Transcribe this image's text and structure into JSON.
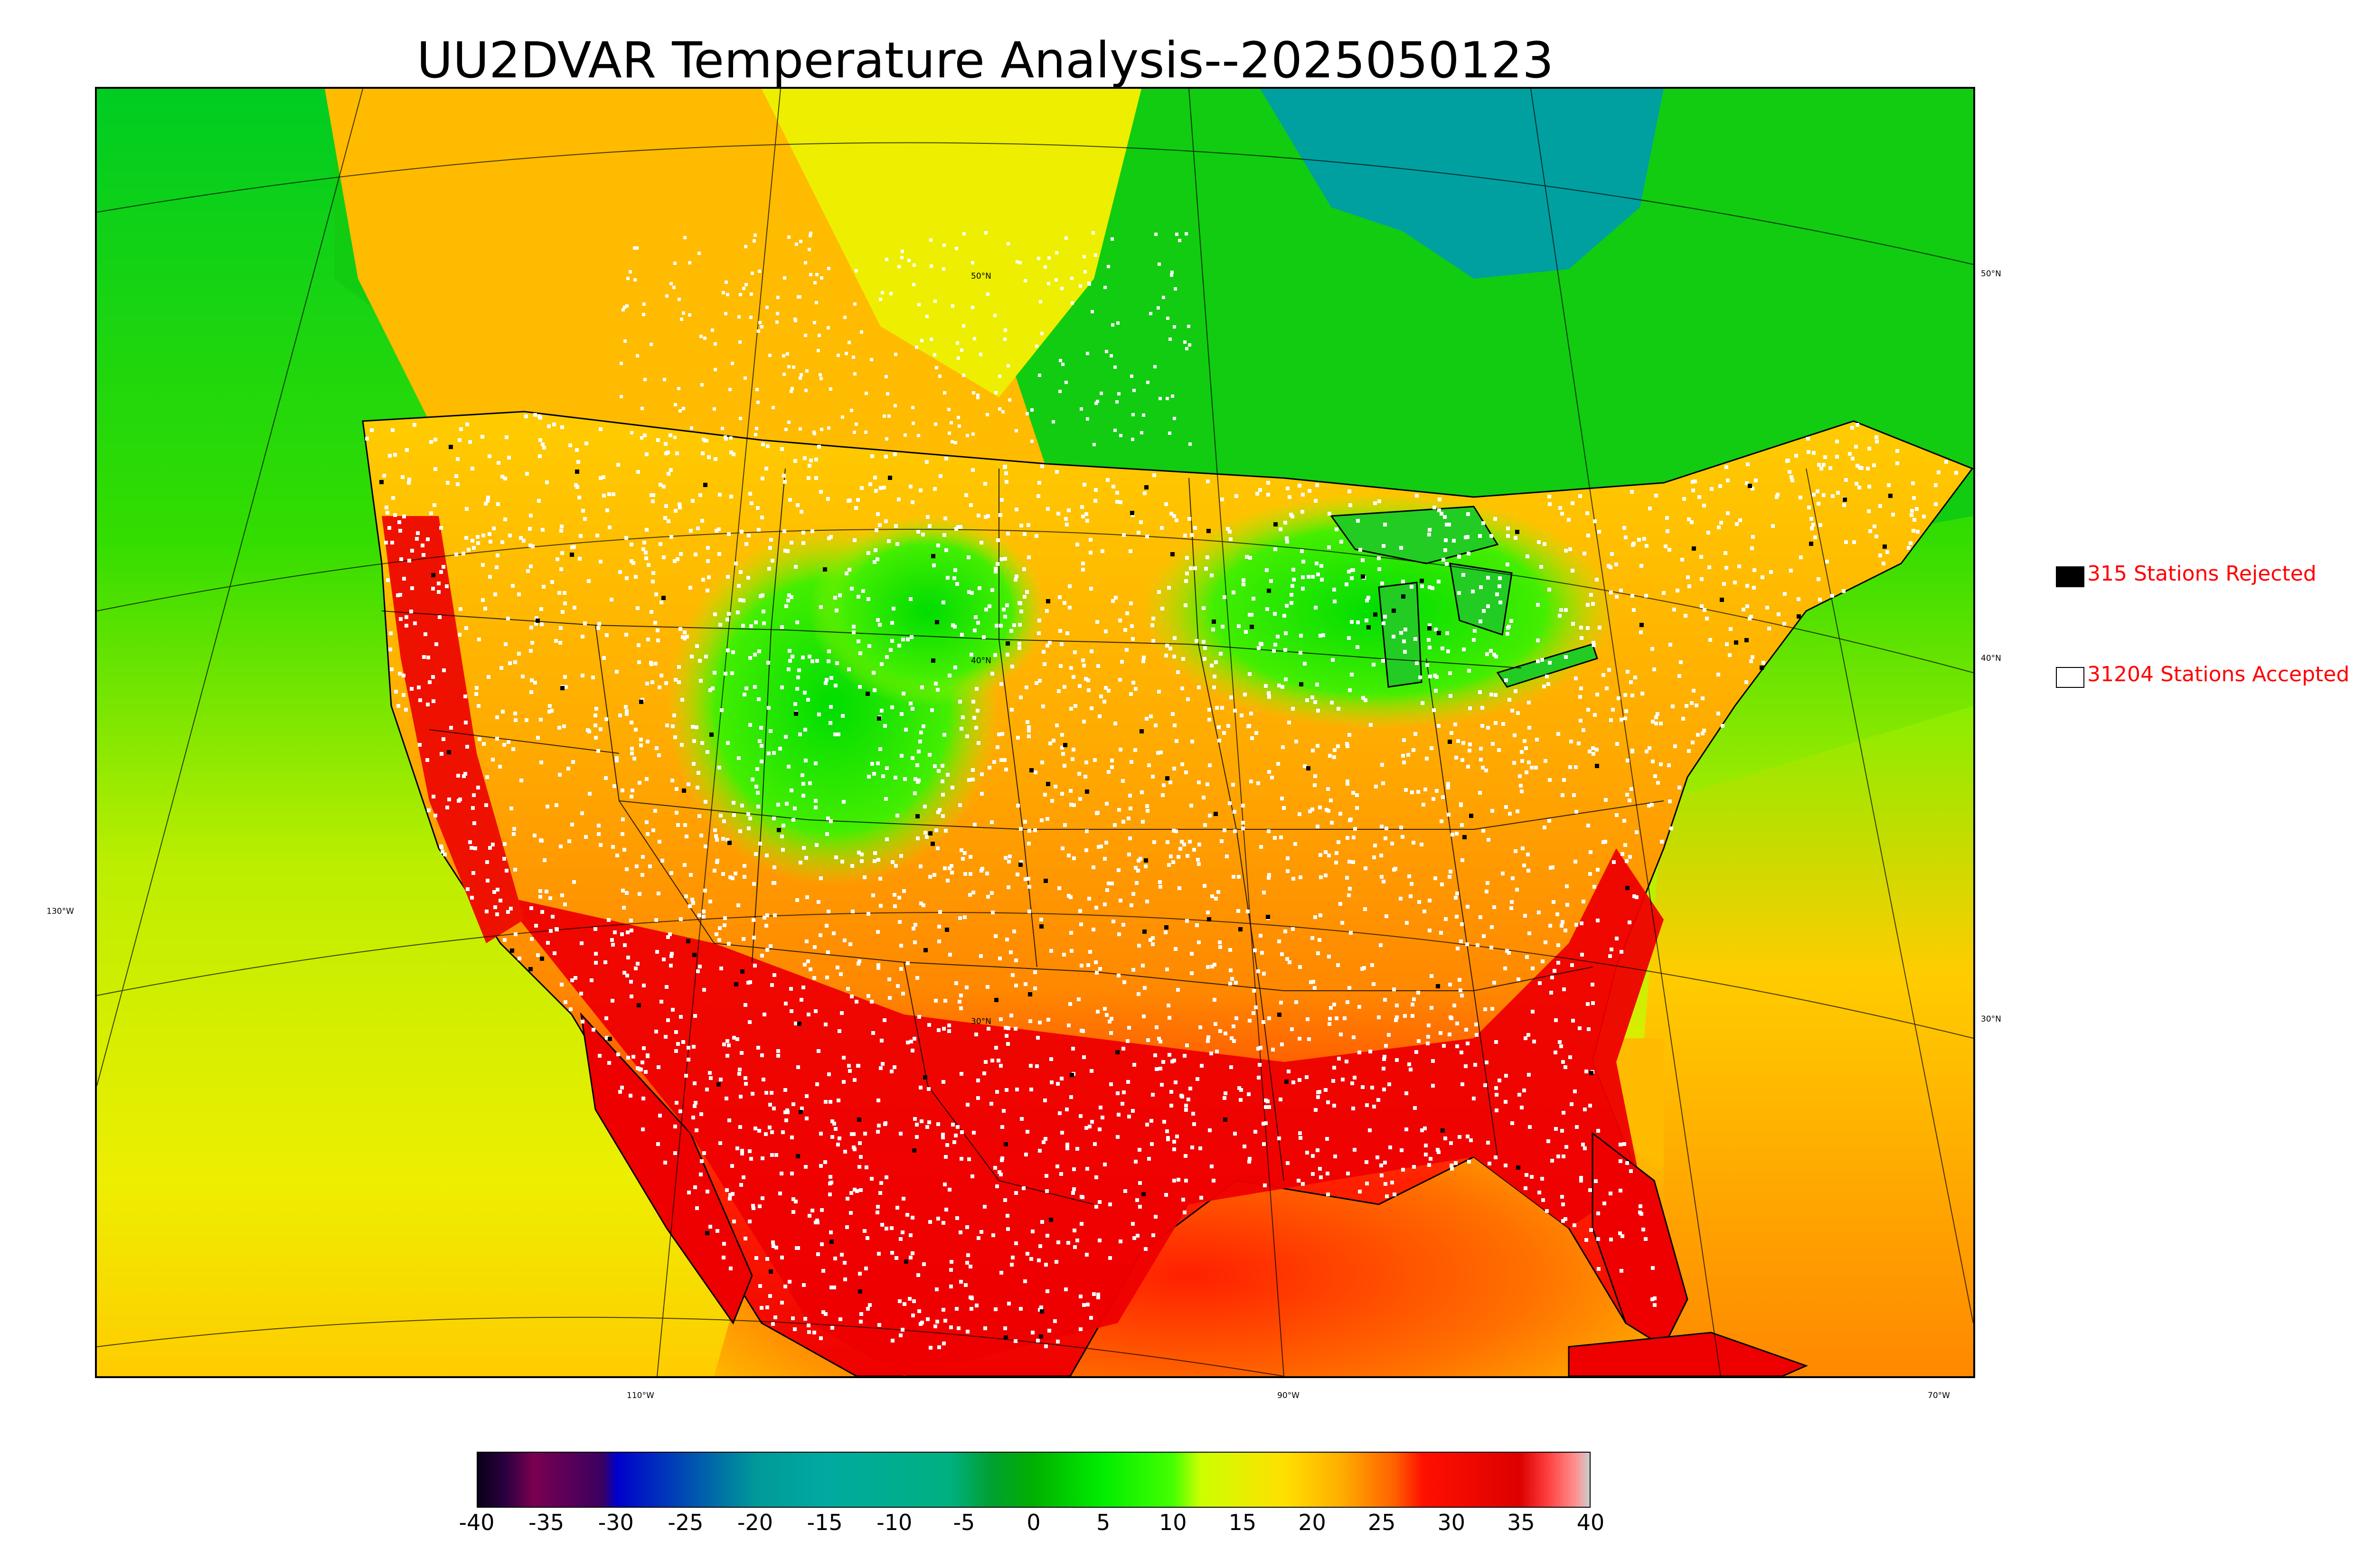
{
  "title": "UU2DVAR Temperature Analysis--2025050123",
  "legend": {
    "rejected": {
      "label": "315 Stations Rejected",
      "fill": "#000000"
    },
    "accepted": {
      "label": "31204 Stations Accepted",
      "fill": "#ffffff"
    }
  },
  "longitude_labels": [
    "130°W",
    "110°W",
    "90°W",
    "70°W"
  ],
  "latitude_labels": [
    "50°N",
    "40°N",
    "30°N"
  ],
  "colorbar": {
    "min": -40,
    "max": 40,
    "ticks": [
      "-40",
      "-35",
      "-30",
      "-25",
      "-20",
      "-15",
      "-10",
      "-5",
      "0",
      "5",
      "10",
      "15",
      "20",
      "25",
      "30",
      "35",
      "40"
    ],
    "stops": [
      {
        "v": -40,
        "c": "#0a0018"
      },
      {
        "v": -38,
        "c": "#2a0040"
      },
      {
        "v": -36,
        "c": "#7a0050"
      },
      {
        "v": -31,
        "c": "#3a0060"
      },
      {
        "v": -30,
        "c": "#0000cc"
      },
      {
        "v": -20,
        "c": "#009999"
      },
      {
        "v": -15,
        "c": "#00aaa0"
      },
      {
        "v": -6,
        "c": "#00b080"
      },
      {
        "v": -3,
        "c": "#00a030"
      },
      {
        "v": 0,
        "c": "#00b000"
      },
      {
        "v": 5,
        "c": "#00ee00"
      },
      {
        "v": 10,
        "c": "#44ff00"
      },
      {
        "v": 12,
        "c": "#ccff00"
      },
      {
        "v": 18,
        "c": "#ffe000"
      },
      {
        "v": 22,
        "c": "#ffb000"
      },
      {
        "v": 26,
        "c": "#ff6000"
      },
      {
        "v": 28,
        "c": "#ff1000"
      },
      {
        "v": 35,
        "c": "#dd0000"
      },
      {
        "v": 37,
        "c": "#ff4040"
      },
      {
        "v": 39,
        "c": "#ff9090"
      },
      {
        "v": 40,
        "c": "#cccccc"
      }
    ]
  },
  "colors": {
    "ocean_north": "#00cc22",
    "ocean_south": "#ccee00",
    "gulf": "#ff5000",
    "hudson_bay": "#00a0a0",
    "land_hot": "#ee0000",
    "land_warm": "#ff9900",
    "land_mild": "#eeee00",
    "land_cool": "#22ee00"
  }
}
